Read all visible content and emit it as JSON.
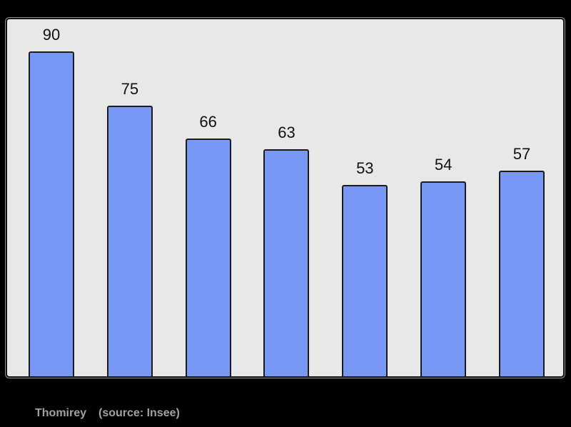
{
  "background_color": "#000000",
  "panel": {
    "bg": "#e8e8e8",
    "border_color": "#141414"
  },
  "chart_data": {
    "type": "bar",
    "title": "",
    "xlabel": "",
    "ylabel": "",
    "categories": [
      "",
      "",
      "",
      "",
      "",
      "",
      ""
    ],
    "values": [
      90,
      75,
      66,
      63,
      53,
      54,
      57
    ],
    "bar_labels": [
      "90",
      "75",
      "66",
      "63",
      "53",
      "54",
      "57"
    ],
    "ylim": [
      0,
      99
    ],
    "grid": false,
    "legend": false,
    "bar_color": "#7799f5",
    "bar_border_color": "#1c1c1c",
    "value_label_color": "#111111"
  },
  "footer": {
    "caption": "Thomirey",
    "source": "(source: Insee)",
    "color": "#a0a0a0"
  }
}
